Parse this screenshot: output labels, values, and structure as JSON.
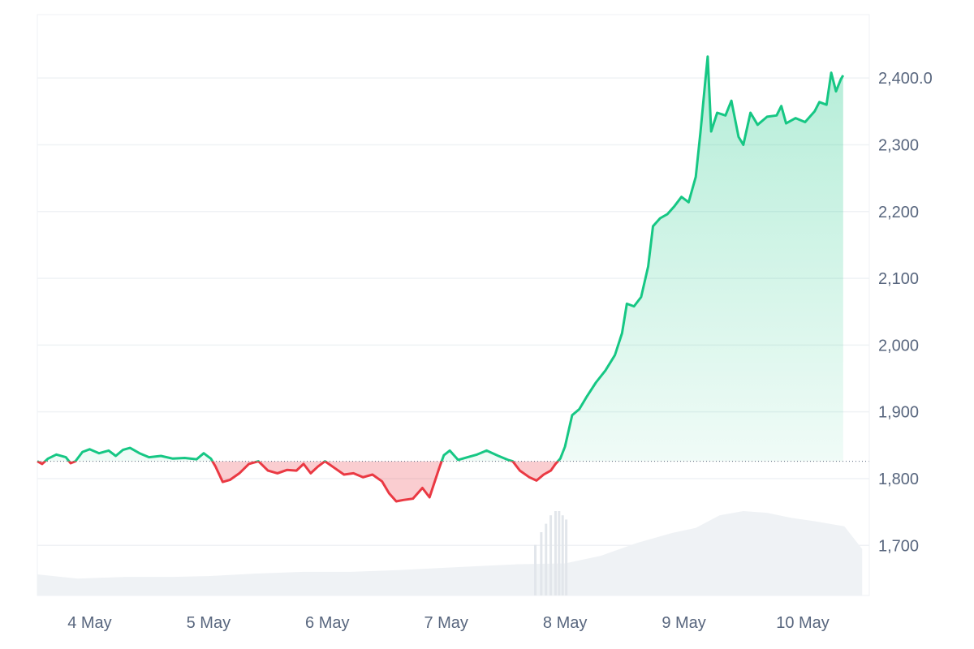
{
  "chart_data": {
    "type": "line",
    "title": "",
    "xlabel": "",
    "ylabel": "",
    "x_ticks": [
      "4 May",
      "5 May",
      "6 May",
      "7 May",
      "8 May",
      "9 May",
      "10 May"
    ],
    "x_range_days": [
      3.56,
      10.56
    ],
    "y_ticks": [
      "2,400.0",
      "2,300",
      "2,200",
      "2,100",
      "2,000",
      "1,900",
      "1,800",
      "1,700"
    ],
    "ylim": [
      1625,
      2495
    ],
    "baseline": 1826,
    "grid": true,
    "legend": "none",
    "colors": {
      "up": "#16c784",
      "down": "#ea3943",
      "volume": "#eff2f5",
      "grid": "#eff2f5",
      "axis_text": "#58667e"
    },
    "series": [
      {
        "values": [
          [
            3.56,
            1826
          ],
          [
            3.6,
            1822
          ],
          [
            3.65,
            1830
          ],
          [
            3.72,
            1836
          ],
          [
            3.8,
            1832
          ],
          [
            3.84,
            1823
          ],
          [
            3.88,
            1826
          ],
          [
            3.94,
            1840
          ],
          [
            4.0,
            1844
          ],
          [
            4.08,
            1838
          ],
          [
            4.16,
            1842
          ],
          [
            4.22,
            1834
          ],
          [
            4.28,
            1843
          ],
          [
            4.34,
            1846
          ],
          [
            4.42,
            1838
          ],
          [
            4.5,
            1832
          ],
          [
            4.6,
            1834
          ],
          [
            4.7,
            1830
          ],
          [
            4.8,
            1831
          ],
          [
            4.9,
            1829
          ],
          [
            4.96,
            1838
          ],
          [
            5.02,
            1830
          ],
          [
            5.06,
            1818
          ],
          [
            5.12,
            1795
          ],
          [
            5.18,
            1798
          ],
          [
            5.26,
            1808
          ],
          [
            5.34,
            1822
          ],
          [
            5.42,
            1826
          ],
          [
            5.5,
            1812
          ],
          [
            5.58,
            1808
          ],
          [
            5.66,
            1813
          ],
          [
            5.74,
            1812
          ],
          [
            5.8,
            1822
          ],
          [
            5.86,
            1808
          ],
          [
            5.92,
            1818
          ],
          [
            5.98,
            1826
          ],
          [
            6.06,
            1816
          ],
          [
            6.14,
            1806
          ],
          [
            6.22,
            1808
          ],
          [
            6.3,
            1802
          ],
          [
            6.38,
            1806
          ],
          [
            6.46,
            1796
          ],
          [
            6.52,
            1778
          ],
          [
            6.58,
            1766
          ],
          [
            6.64,
            1768
          ],
          [
            6.72,
            1770
          ],
          [
            6.8,
            1786
          ],
          [
            6.86,
            1772
          ],
          [
            6.94,
            1815
          ],
          [
            6.98,
            1835
          ],
          [
            7.03,
            1842
          ],
          [
            7.1,
            1828
          ],
          [
            7.18,
            1832
          ],
          [
            7.26,
            1836
          ],
          [
            7.34,
            1842
          ],
          [
            7.44,
            1834
          ],
          [
            7.52,
            1828
          ],
          [
            7.56,
            1826
          ],
          [
            7.62,
            1812
          ],
          [
            7.7,
            1802
          ],
          [
            7.76,
            1797
          ],
          [
            7.82,
            1806
          ],
          [
            7.88,
            1812
          ],
          [
            7.92,
            1822
          ],
          [
            7.96,
            1830
          ],
          [
            8.0,
            1848
          ],
          [
            8.06,
            1895
          ],
          [
            8.12,
            1904
          ],
          [
            8.18,
            1922
          ],
          [
            8.26,
            1944
          ],
          [
            8.34,
            1962
          ],
          [
            8.42,
            1985
          ],
          [
            8.48,
            2018
          ],
          [
            8.52,
            2062
          ],
          [
            8.58,
            2058
          ],
          [
            8.64,
            2072
          ],
          [
            8.7,
            2118
          ],
          [
            8.74,
            2178
          ],
          [
            8.8,
            2190
          ],
          [
            8.86,
            2196
          ],
          [
            8.92,
            2208
          ],
          [
            8.98,
            2222
          ],
          [
            9.04,
            2214
          ],
          [
            9.1,
            2252
          ],
          [
            9.14,
            2320
          ],
          [
            9.18,
            2395
          ],
          [
            9.2,
            2432
          ],
          [
            9.23,
            2320
          ],
          [
            9.28,
            2348
          ],
          [
            9.35,
            2344
          ],
          [
            9.4,
            2366
          ],
          [
            9.46,
            2312
          ],
          [
            9.5,
            2300
          ],
          [
            9.56,
            2348
          ],
          [
            9.62,
            2330
          ],
          [
            9.7,
            2342
          ],
          [
            9.78,
            2344
          ],
          [
            9.82,
            2358
          ],
          [
            9.86,
            2332
          ],
          [
            9.94,
            2340
          ],
          [
            10.02,
            2334
          ],
          [
            10.1,
            2350
          ],
          [
            10.14,
            2364
          ],
          [
            10.2,
            2360
          ],
          [
            10.24,
            2408
          ],
          [
            10.28,
            2380
          ],
          [
            10.32,
            2398
          ],
          [
            10.34,
            2404
          ]
        ]
      }
    ],
    "volume_series": [
      [
        3.56,
        0.25
      ],
      [
        3.9,
        0.2
      ],
      [
        4.3,
        0.22
      ],
      [
        4.7,
        0.22
      ],
      [
        5.0,
        0.23
      ],
      [
        5.4,
        0.26
      ],
      [
        5.8,
        0.28
      ],
      [
        6.2,
        0.28
      ],
      [
        6.6,
        0.3
      ],
      [
        7.0,
        0.33
      ],
      [
        7.3,
        0.35
      ],
      [
        7.6,
        0.37
      ],
      [
        8.0,
        0.38
      ],
      [
        8.3,
        0.47
      ],
      [
        8.6,
        0.62
      ],
      [
        8.9,
        0.74
      ],
      [
        9.1,
        0.8
      ],
      [
        9.3,
        0.95
      ],
      [
        9.5,
        1.0
      ],
      [
        9.7,
        0.98
      ],
      [
        9.9,
        0.92
      ],
      [
        10.1,
        0.88
      ],
      [
        10.35,
        0.82
      ],
      [
        10.5,
        0.55
      ]
    ],
    "volume_spikes": [
      [
        7.75,
        0.6
      ],
      [
        7.8,
        0.75
      ],
      [
        7.84,
        0.85
      ],
      [
        7.88,
        0.95
      ],
      [
        7.92,
        1.0
      ],
      [
        7.95,
        1.0
      ],
      [
        7.98,
        0.95
      ],
      [
        8.01,
        0.9
      ]
    ]
  }
}
